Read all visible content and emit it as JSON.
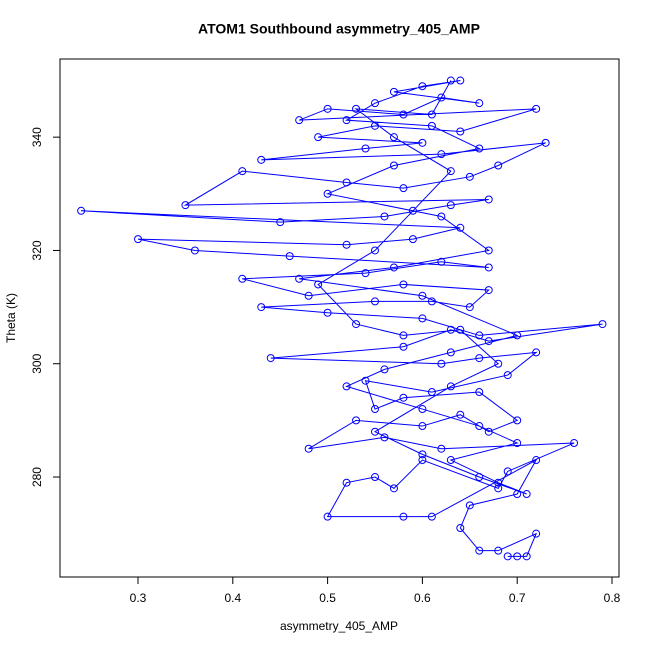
{
  "chart_data": {
    "type": "line",
    "title": "ATOM1 Southbound asymmetry_405_AMP",
    "x_label": "asymmetry_405_AMP",
    "y_label": "Theta (K)",
    "color": "#0000ff",
    "marker": "circle",
    "xlim": [
      0.2177,
      0.8074
    ],
    "ylim": [
      262.35,
      353.8
    ],
    "xticks": [
      0.3,
      0.4,
      0.5,
      0.6,
      0.7,
      0.8
    ],
    "yticks": [
      280,
      300,
      320,
      340
    ],
    "x": [
      0.7,
      0.69,
      0.71,
      0.72,
      0.68,
      0.66,
      0.64,
      0.65,
      0.7,
      0.72,
      0.61,
      0.58,
      0.5,
      0.52,
      0.55,
      0.57,
      0.6,
      0.68,
      0.69,
      0.76,
      0.62,
      0.56,
      0.48,
      0.53,
      0.6,
      0.64,
      0.67,
      0.7,
      0.66,
      0.58,
      0.55,
      0.54,
      0.61,
      0.69,
      0.72,
      0.66,
      0.62,
      0.44,
      0.58,
      0.63,
      0.67,
      0.79,
      0.66,
      0.6,
      0.5,
      0.43,
      0.55,
      0.61,
      0.65,
      0.67,
      0.58,
      0.48,
      0.41,
      0.54,
      0.62,
      0.67,
      0.46,
      0.36,
      0.3,
      0.52,
      0.59,
      0.64,
      0.24,
      0.45,
      0.56,
      0.63,
      0.67,
      0.35,
      0.41,
      0.52,
      0.58,
      0.65,
      0.68,
      0.73,
      0.62,
      0.43,
      0.54,
      0.6,
      0.49,
      0.55,
      0.64,
      0.72,
      0.47,
      0.5,
      0.58,
      0.62,
      0.66,
      0.57,
      0.64,
      0.6,
      0.55,
      0.52,
      0.61,
      0.66,
      0.57,
      0.5,
      0.62,
      0.67,
      0.57,
      0.47,
      0.6,
      0.7,
      0.63,
      0.56,
      0.52,
      0.6,
      0.66,
      0.7,
      0.63,
      0.68,
      0.71,
      0.66,
      0.6,
      0.55,
      0.63,
      0.68,
      0.64,
      0.58,
      0.53,
      0.49,
      0.55,
      0.59,
      0.63,
      0.57,
      0.53,
      0.61,
      0.63
    ],
    "y": [
      266,
      266,
      266,
      270,
      267,
      267,
      271,
      275,
      277,
      283,
      273,
      273,
      273,
      279,
      280,
      278,
      283,
      278,
      281,
      286,
      285,
      287,
      285,
      290,
      289,
      291,
      288,
      290,
      295,
      294,
      292,
      297,
      295,
      298,
      302,
      301,
      300,
      301,
      303,
      306,
      304,
      307,
      305,
      308,
      309,
      310,
      311,
      311,
      310,
      313,
      314,
      312,
      315,
      316,
      318,
      317,
      319,
      320,
      322,
      321,
      322,
      324,
      327,
      325,
      326,
      328,
      329,
      328,
      334,
      332,
      331,
      333,
      335,
      339,
      337,
      336,
      338,
      339,
      340,
      342,
      341,
      345,
      343,
      345,
      344,
      347,
      346,
      348,
      350,
      349,
      346,
      343,
      342,
      338,
      335,
      330,
      326,
      320,
      317,
      315,
      312,
      305,
      302,
      299,
      296,
      292,
      289,
      286,
      283,
      279,
      277,
      280,
      284,
      288,
      296,
      300,
      306,
      305,
      307,
      314,
      320,
      327,
      334,
      340,
      345,
      344,
      350
    ]
  }
}
